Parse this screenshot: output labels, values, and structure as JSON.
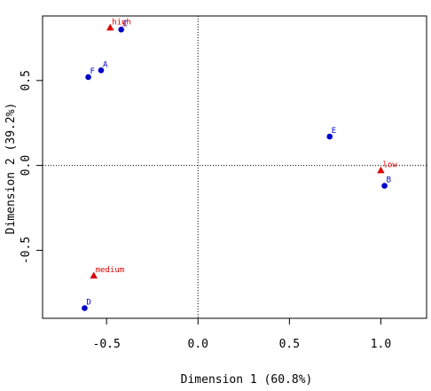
{
  "chart_data": {
    "type": "scatter",
    "title": "",
    "xlabel": "Dimension 1 (60.8%)",
    "ylabel": "Dimension 2 (39.2%)",
    "xlim": [
      -0.85,
      1.25
    ],
    "ylim": [
      -0.9,
      0.88
    ],
    "xticks": [
      -0.5,
      0.0,
      0.5,
      1.0
    ],
    "xtick_labels": [
      "-0.5",
      "0.0",
      "0.5",
      "1.0"
    ],
    "yticks": [
      -0.5,
      0.0,
      0.5
    ],
    "ytick_labels": [
      "-0.5",
      "0.0",
      "0.5"
    ],
    "reference_lines": {
      "x": 0,
      "y": 0,
      "style": "dotted"
    },
    "grid": false,
    "legend": "none",
    "series": [
      {
        "marker": "circle",
        "color": "#0000cc",
        "points": [
          {
            "label": "A",
            "x": -0.53,
            "y": 0.56
          },
          {
            "label": "B",
            "x": 1.02,
            "y": -0.12
          },
          {
            "label": "C",
            "x": -0.42,
            "y": 0.8
          },
          {
            "label": "D",
            "x": -0.62,
            "y": -0.84
          },
          {
            "label": "E",
            "x": 0.72,
            "y": 0.17
          },
          {
            "label": "F",
            "x": -0.6,
            "y": 0.52
          }
        ]
      },
      {
        "marker": "triangle",
        "color": "#dd0000",
        "points": [
          {
            "label": "high",
            "x": -0.48,
            "y": 0.81
          },
          {
            "label": "low",
            "x": 1.0,
            "y": -0.03
          },
          {
            "label": "medium",
            "x": -0.57,
            "y": -0.65
          }
        ]
      }
    ]
  }
}
